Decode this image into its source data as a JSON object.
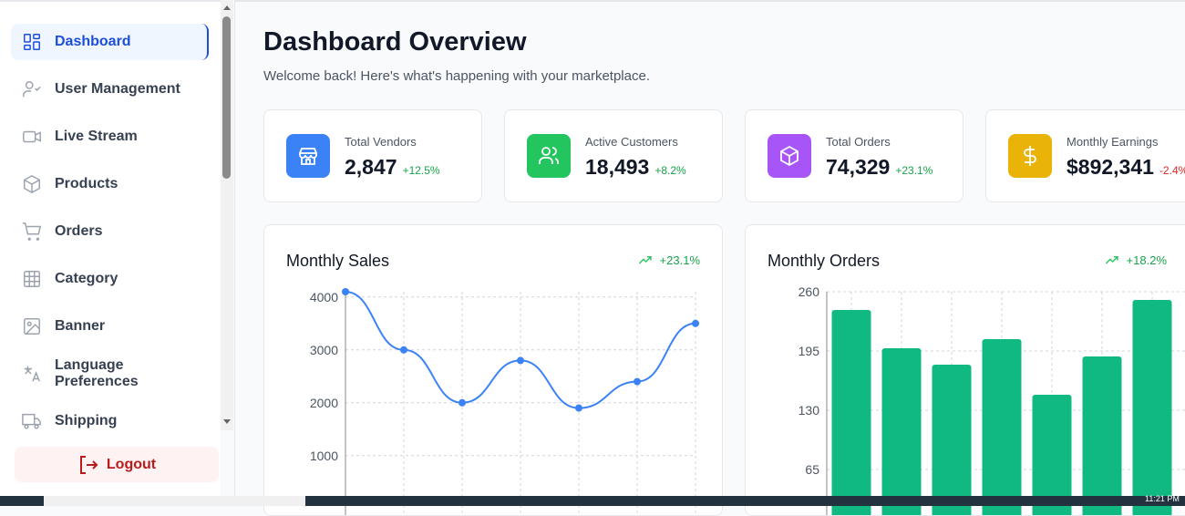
{
  "sidebar": {
    "items": [
      {
        "label": "Dashboard",
        "icon": "dashboard-grid-icon",
        "active": true
      },
      {
        "label": "User Management",
        "icon": "user-check-icon"
      },
      {
        "label": "Live Stream",
        "icon": "video-icon"
      },
      {
        "label": "Products",
        "icon": "package-icon"
      },
      {
        "label": "Orders",
        "icon": "cart-icon"
      },
      {
        "label": "Category",
        "icon": "grid-icon"
      },
      {
        "label": "Banner",
        "icon": "image-icon"
      },
      {
        "label": "Language Preferences",
        "icon": "translate-icon"
      },
      {
        "label": "Shipping",
        "icon": "truck-icon"
      }
    ],
    "logout": "Logout"
  },
  "header": {
    "title": "Dashboard Overview",
    "subtitle": "Welcome back! Here's what's happening with your marketplace."
  },
  "stats": [
    {
      "label": "Total Vendors",
      "value": "2,847",
      "change": "+12.5%",
      "color": "#3b82f6",
      "changeColor": "#16a34a",
      "icon": "store-icon"
    },
    {
      "label": "Active Customers",
      "value": "18,493",
      "change": "+8.2%",
      "color": "#22c55e",
      "changeColor": "#16a34a",
      "icon": "users-icon"
    },
    {
      "label": "Total Orders",
      "value": "74,329",
      "change": "+23.1%",
      "color": "#a855f7",
      "changeColor": "#16a34a",
      "icon": "package-icon"
    },
    {
      "label": "Monthly Earnings",
      "value": "$892,341",
      "change": "-2.4%",
      "color": "#eab308",
      "changeColor": "#dc2626",
      "icon": "dollar-icon"
    }
  ],
  "chart_data": [
    {
      "type": "line",
      "title": "Monthly Sales",
      "trend": "+23.1%",
      "color": "#3b82f6",
      "values": [
        4100,
        3000,
        2000,
        2800,
        1900,
        2400,
        3500
      ],
      "yticks": [
        1000,
        2000,
        3000,
        4000
      ],
      "ylim": [
        0,
        4100
      ],
      "grid": true
    },
    {
      "type": "bar",
      "title": "Monthly Orders",
      "trend": "+18.2%",
      "color": "#10b981",
      "values": [
        240,
        198,
        180,
        208,
        147,
        189,
        251
      ],
      "yticks": [
        65,
        130,
        195,
        260
      ],
      "ylim": [
        0,
        260
      ],
      "grid": true
    }
  ],
  "taskbar": {
    "clock": "11:21 PM"
  }
}
